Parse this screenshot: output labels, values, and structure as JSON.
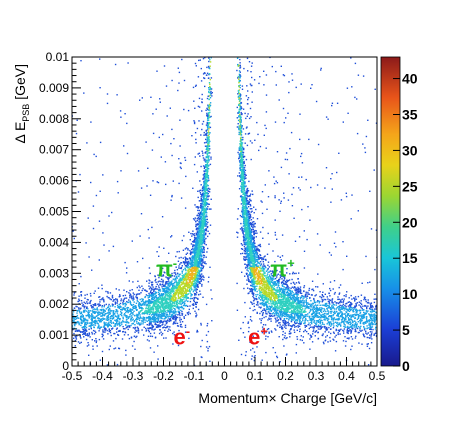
{
  "chart_data": {
    "type": "heatmap",
    "xlabel": "Momentum× Charge [GeV/c]",
    "ylabel": {
      "prefix": "Δ E",
      "subscript": "PSB",
      "suffix": " [GeV]"
    },
    "xlim": [
      -0.5,
      0.5
    ],
    "ylim": [
      0,
      0.01
    ],
    "x_ticks": [
      -0.5,
      -0.4,
      -0.3,
      -0.2,
      -0.1,
      0,
      0.1,
      0.2,
      0.3,
      0.4,
      0.5
    ],
    "x_tick_labels": [
      "-0.5",
      "-0.4",
      "-0.3",
      "-0.2",
      "-0.1",
      "0",
      "0.1",
      "0.2",
      "0.3",
      "0.4",
      "0.5"
    ],
    "y_ticks": [
      0,
      0.001,
      0.002,
      0.003,
      0.004,
      0.005,
      0.006,
      0.007,
      0.008,
      0.009,
      0.01
    ],
    "y_tick_labels": [
      "0",
      "0.001",
      "0.002",
      "0.003",
      "0.004",
      "0.005",
      "0.006",
      "0.007",
      "0.008",
      "0.009",
      "0.01"
    ],
    "colorbar": {
      "min": 0,
      "max": 43,
      "ticks": [
        0,
        5,
        10,
        15,
        20,
        25,
        30,
        35,
        40
      ],
      "tick_labels": [
        "0",
        "5",
        "10",
        "15",
        "20",
        "25",
        "30",
        "35",
        "40"
      ]
    },
    "annotations": [
      {
        "base": "π",
        "sup": "-",
        "x": -0.19,
        "y": 0.0029,
        "color": "#22bb22"
      },
      {
        "base": "π",
        "sup": "+",
        "x": 0.19,
        "y": 0.0029,
        "color": "#22bb22"
      },
      {
        "base": "e",
        "sup": "-",
        "x": -0.14,
        "y": 0.0007,
        "color": "#ee1111"
      },
      {
        "base": "e",
        "sup": "+",
        "x": 0.11,
        "y": 0.0007,
        "color": "#ee1111"
      }
    ]
  }
}
